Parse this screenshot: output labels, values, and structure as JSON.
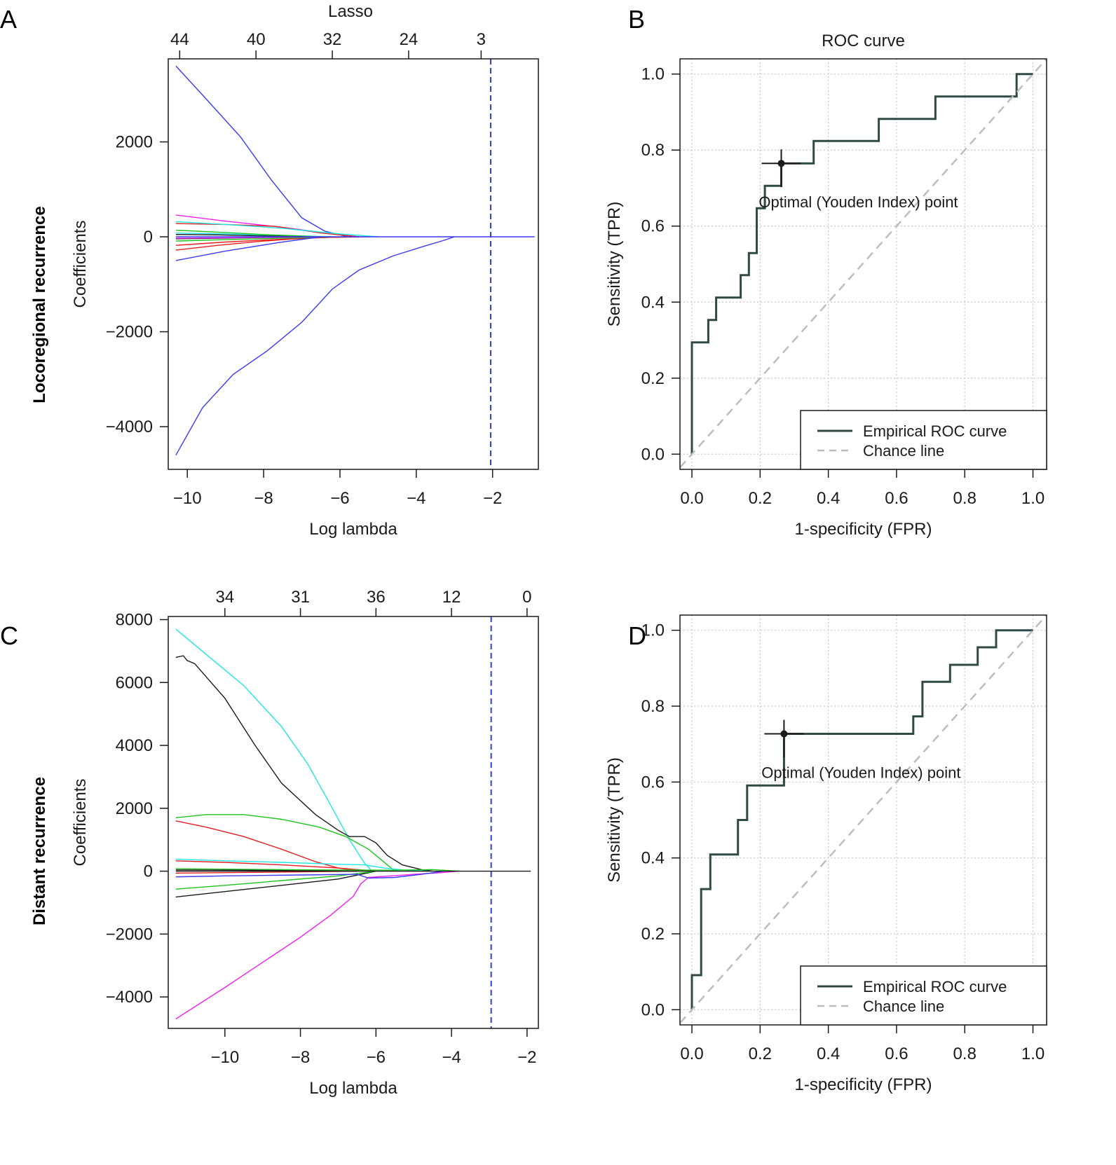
{
  "panels": {
    "A": {
      "letter": "A",
      "row_label": "Locoregional recurrence"
    },
    "B": {
      "letter": "B"
    },
    "C": {
      "letter": "C",
      "row_label": "Distant recurrence"
    },
    "D": {
      "letter": "D"
    }
  },
  "colors": {
    "blue": "#3a3af0",
    "red": "#e51e1e",
    "magenta": "#f21ef2",
    "cyan": "#1ee6e6",
    "green": "#1ec41e",
    "black": "#1a1a1a",
    "roc": "#2f4a45",
    "chance": "#bdbdbd",
    "grid": "#c8c8c8",
    "cutoff": "#2b3fd0"
  },
  "chart_data": [
    {
      "type": "line",
      "panel": "A",
      "title": "Lasso",
      "xlabel": "Log lambda",
      "ylabel": "Coefficients",
      "xlim": [
        -10.5,
        -0.8
      ],
      "ylim": [
        -4900,
        3750
      ],
      "xticks": [
        -10,
        -8,
        -6,
        -4,
        -2
      ],
      "xtick_labels": [
        "−10",
        "−8",
        "−6",
        "−4",
        "−2"
      ],
      "yticks": [
        -4000,
        -2000,
        0,
        2000
      ],
      "ytick_labels": [
        "−4000",
        "−2000",
        "0",
        "2000"
      ],
      "top_ticks": [
        -10.2,
        -8.2,
        -6.2,
        -4.2,
        -2.3
      ],
      "top_tick_labels": [
        "44",
        "40",
        "32",
        "24",
        "3"
      ],
      "vline": -2.05,
      "series": [
        {
          "color": "blue",
          "x": [
            -10.3,
            -9.5,
            -8.6,
            -7.8,
            -7.0,
            -6.4,
            -5.8
          ],
          "y": [
            3600,
            2900,
            2100,
            1200,
            400,
            120,
            0
          ]
        },
        {
          "color": "blue",
          "x": [
            -10.3,
            -9.6,
            -8.8,
            -7.9,
            -7.0,
            -6.2,
            -5.5,
            -4.6,
            -3.8,
            -3.3,
            -3.0
          ],
          "y": [
            -4600,
            -3600,
            -2900,
            -2400,
            -1800,
            -1100,
            -700,
            -400,
            -200,
            -80,
            0
          ]
        },
        {
          "color": "magenta",
          "x": [
            -10.3,
            -9.0,
            -7.5,
            -6.2,
            -5.5
          ],
          "y": [
            460,
            330,
            200,
            60,
            0
          ]
        },
        {
          "color": "red",
          "x": [
            -10.3,
            -9.0,
            -7.7,
            -6.5,
            -5.5
          ],
          "y": [
            280,
            260,
            220,
            80,
            0
          ]
        },
        {
          "color": "red",
          "x": [
            -10.3,
            -9.2,
            -8.0,
            -6.8,
            -5.5
          ],
          "y": [
            -280,
            -180,
            -90,
            -20,
            0
          ]
        },
        {
          "color": "red",
          "x": [
            -10.3,
            -9.0,
            -7.5,
            -6.2,
            -5.2
          ],
          "y": [
            -180,
            -110,
            -50,
            -10,
            0
          ]
        },
        {
          "color": "cyan",
          "x": [
            -10.3,
            -9.0,
            -7.5,
            -6.0,
            -5.0
          ],
          "y": [
            320,
            260,
            180,
            60,
            0
          ]
        },
        {
          "color": "cyan",
          "x": [
            -10.3,
            -9.0,
            -7.5,
            -6.2
          ],
          "y": [
            80,
            60,
            30,
            0
          ]
        },
        {
          "color": "green",
          "x": [
            -10.3,
            -9.0,
            -7.8,
            -6.5
          ],
          "y": [
            140,
            90,
            40,
            0
          ]
        },
        {
          "color": "green",
          "x": [
            -10.3,
            -9.0,
            -7.6,
            -6.2
          ],
          "y": [
            -90,
            -60,
            -30,
            0
          ]
        },
        {
          "color": "black",
          "x": [
            -10.3,
            -9.2,
            -8.0,
            -7.0
          ],
          "y": [
            50,
            40,
            20,
            0
          ]
        },
        {
          "color": "black",
          "x": [
            -10.3,
            -9.2,
            -8.0,
            -7.0
          ],
          "y": [
            -40,
            -30,
            -15,
            0
          ]
        },
        {
          "color": "blue",
          "x": [
            -10.3,
            -9.0,
            -7.6,
            -6.5
          ],
          "y": [
            -500,
            -300,
            -120,
            0
          ]
        },
        {
          "color": "magenta",
          "x": [
            -10.3,
            -9.0,
            -7.6,
            -6.5
          ],
          "y": [
            -30,
            -20,
            -10,
            0
          ]
        },
        {
          "color": "blue",
          "x": [
            -10.3,
            -9.0,
            -7.5,
            -6.0,
            -4.5,
            -3.0,
            -0.9
          ],
          "y": [
            0,
            0,
            0,
            0,
            0,
            0,
            0
          ]
        }
      ]
    },
    {
      "type": "line",
      "panel": "B",
      "title": "ROC curve",
      "xlabel": "1-specificity (FPR)",
      "ylabel": "Sensitivity (TPR)",
      "xlim": [
        -0.035,
        1.04
      ],
      "ylim": [
        -0.04,
        1.04
      ],
      "xticks": [
        0,
        0.2,
        0.4,
        0.6,
        0.8,
        1.0
      ],
      "xtick_labels": [
        "0.0",
        "0.2",
        "0.4",
        "0.6",
        "0.8",
        "1.0"
      ],
      "yticks": [
        0,
        0.2,
        0.4,
        0.6,
        0.8,
        1.0
      ],
      "ytick_labels": [
        "0.0",
        "0.2",
        "0.4",
        "0.6",
        "0.8",
        "1.0"
      ],
      "series": [
        {
          "name": "Empirical ROC curve",
          "color": "roc",
          "x": [
            0,
            0,
            0.048,
            0.048,
            0.071,
            0.071,
            0.143,
            0.143,
            0.167,
            0.167,
            0.19,
            0.19,
            0.214,
            0.214,
            0.262,
            0.262,
            0.357,
            0.357,
            0.548,
            0.548,
            0.714,
            0.714,
            0.952,
            0.952,
            1.0
          ],
          "y": [
            0,
            0.294,
            0.294,
            0.353,
            0.353,
            0.412,
            0.412,
            0.471,
            0.471,
            0.529,
            0.529,
            0.647,
            0.647,
            0.706,
            0.706,
            0.765,
            0.765,
            0.824,
            0.824,
            0.882,
            0.882,
            0.941,
            0.941,
            1.0,
            1.0
          ]
        },
        {
          "name": "Chance line",
          "color": "chance",
          "x": [
            -0.035,
            1.04
          ],
          "y": [
            -0.035,
            1.04
          ]
        }
      ],
      "optimal_point": {
        "x": 0.262,
        "y": 0.765,
        "label": "Optimal (Youden Index) point"
      }
    },
    {
      "type": "line",
      "panel": "C",
      "xlabel": "Log lambda",
      "ylabel": "Coefficients",
      "xlim": [
        -11.5,
        -1.7
      ],
      "ylim": [
        -5000,
        8100
      ],
      "xticks": [
        -10,
        -8,
        -6,
        -4,
        -2
      ],
      "xtick_labels": [
        "−10",
        "−8",
        "−6",
        "−4",
        "−2"
      ],
      "yticks": [
        -4000,
        -2000,
        0,
        2000,
        4000,
        6000,
        8000
      ],
      "ytick_labels": [
        "−4000",
        "−2000",
        "0",
        "2000",
        "4000",
        "6000",
        "8000"
      ],
      "top_ticks": [
        -10,
        -8,
        -6,
        -4,
        -2
      ],
      "top_tick_labels": [
        "34",
        "31",
        "36",
        "12",
        "0"
      ],
      "vline": -2.95,
      "series": [
        {
          "color": "cyan",
          "x": [
            -11.3,
            -10.5,
            -9.5,
            -8.5,
            -7.8,
            -7.2,
            -6.7,
            -6.3,
            -6.1
          ],
          "y": [
            7700,
            6900,
            5900,
            4600,
            3400,
            2100,
            1000,
            250,
            0
          ]
        },
        {
          "color": "black",
          "x": [
            -11.3,
            -11.1,
            -11.0,
            -10.8,
            -10.0,
            -9.2,
            -8.5,
            -7.6,
            -7.0,
            -6.7,
            -6.3,
            -6.0,
            -5.7,
            -5.3,
            -4.8,
            -4.5
          ],
          "y": [
            6800,
            6850,
            6700,
            6600,
            5500,
            4000,
            2800,
            1800,
            1300,
            1100,
            1100,
            900,
            500,
            200,
            50,
            0
          ]
        },
        {
          "color": "green",
          "x": [
            -11.3,
            -10.5,
            -9.5,
            -8.5,
            -7.5,
            -6.8,
            -6.2,
            -5.8,
            -5.5
          ],
          "y": [
            1700,
            1800,
            1800,
            1650,
            1400,
            1100,
            700,
            300,
            0
          ]
        },
        {
          "color": "red",
          "x": [
            -11.3,
            -10.5,
            -9.5,
            -8.5,
            -7.6,
            -7.0,
            -6.5,
            -6.1
          ],
          "y": [
            1600,
            1400,
            1100,
            700,
            300,
            100,
            20,
            0
          ]
        },
        {
          "color": "cyan",
          "x": [
            -11.3,
            -10.0,
            -8.5,
            -7.0,
            -6.3,
            -5.8,
            -5.2,
            -4.6
          ],
          "y": [
            380,
            330,
            280,
            220,
            200,
            100,
            30,
            0
          ]
        },
        {
          "color": "red",
          "x": [
            -11.3,
            -10.0,
            -8.5,
            -7.0,
            -6.0
          ],
          "y": [
            330,
            280,
            200,
            100,
            0
          ]
        },
        {
          "color": "magenta",
          "x": [
            -11.3,
            -10.0,
            -9.0,
            -8.0,
            -7.2,
            -6.6,
            -6.4,
            -6.2
          ],
          "y": [
            -4700,
            -3700,
            -2900,
            -2100,
            -1400,
            -800,
            -400,
            -200
          ]
        },
        {
          "color": "magenta",
          "x": [
            -6.2,
            -5.6,
            -5.0,
            -4.3,
            -3.8
          ],
          "y": [
            -200,
            -150,
            -100,
            -50,
            0
          ]
        },
        {
          "color": "black",
          "x": [
            -11.3,
            -10.0,
            -8.5,
            -7.0,
            -6.0
          ],
          "y": [
            -820,
            -650,
            -450,
            -250,
            0
          ]
        },
        {
          "color": "green",
          "x": [
            -11.3,
            -10.0,
            -8.5,
            -7.0,
            -6.0
          ],
          "y": [
            -570,
            -450,
            -300,
            -150,
            0
          ]
        },
        {
          "color": "blue",
          "x": [
            -11.3,
            -10.0,
            -8.0,
            -6.5,
            -6.2,
            -5.5,
            -4.8,
            -4.2
          ],
          "y": [
            -180,
            -150,
            -120,
            -100,
            -220,
            -200,
            -100,
            0
          ]
        },
        {
          "color": "green",
          "x": [
            -11.3,
            -9.5,
            -7.5,
            -5.5,
            -4.5,
            -3.8
          ],
          "y": [
            80,
            60,
            40,
            30,
            50,
            0
          ]
        },
        {
          "color": "red",
          "x": [
            -11.3,
            -9.5,
            -8.0,
            -6.5
          ],
          "y": [
            -60,
            -40,
            -20,
            0
          ]
        },
        {
          "color": "black",
          "x": [
            -11.3,
            -9.5,
            -8.0,
            -6.5
          ],
          "y": [
            40,
            30,
            15,
            0
          ]
        },
        {
          "color": "black",
          "x": [
            -11.3,
            -9.0,
            -6.0,
            -4.0,
            -1.9
          ],
          "y": [
            0,
            0,
            0,
            0,
            0
          ]
        }
      ]
    },
    {
      "type": "line",
      "panel": "D",
      "xlabel": "1-specificity (FPR)",
      "ylabel": "Sensitivity (TPR)",
      "xlim": [
        -0.035,
        1.04
      ],
      "ylim": [
        -0.04,
        1.04
      ],
      "xticks": [
        0,
        0.2,
        0.4,
        0.6,
        0.8,
        1.0
      ],
      "xtick_labels": [
        "0.0",
        "0.2",
        "0.4",
        "0.6",
        "0.8",
        "1.0"
      ],
      "yticks": [
        0,
        0.2,
        0.4,
        0.6,
        0.8,
        1.0
      ],
      "ytick_labels": [
        "0.0",
        "0.2",
        "0.4",
        "0.6",
        "0.8",
        "1.0"
      ],
      "series": [
        {
          "name": "Empirical ROC curve",
          "color": "roc",
          "x": [
            0,
            0,
            0.027,
            0.027,
            0.054,
            0.054,
            0.135,
            0.135,
            0.162,
            0.162,
            0.27,
            0.27,
            0.649,
            0.649,
            0.676,
            0.676,
            0.757,
            0.757,
            0.838,
            0.838,
            0.892,
            0.892,
            1.0
          ],
          "y": [
            0,
            0.091,
            0.091,
            0.318,
            0.318,
            0.409,
            0.409,
            0.5,
            0.5,
            0.591,
            0.591,
            0.727,
            0.727,
            0.773,
            0.773,
            0.864,
            0.864,
            0.909,
            0.909,
            0.955,
            0.955,
            1.0,
            1.0
          ]
        },
        {
          "name": "Chance line",
          "color": "chance",
          "x": [
            -0.035,
            1.04
          ],
          "y": [
            -0.035,
            1.04
          ]
        }
      ],
      "optimal_point": {
        "x": 0.27,
        "y": 0.727,
        "label": "Optimal (Youden Index) point"
      }
    }
  ]
}
